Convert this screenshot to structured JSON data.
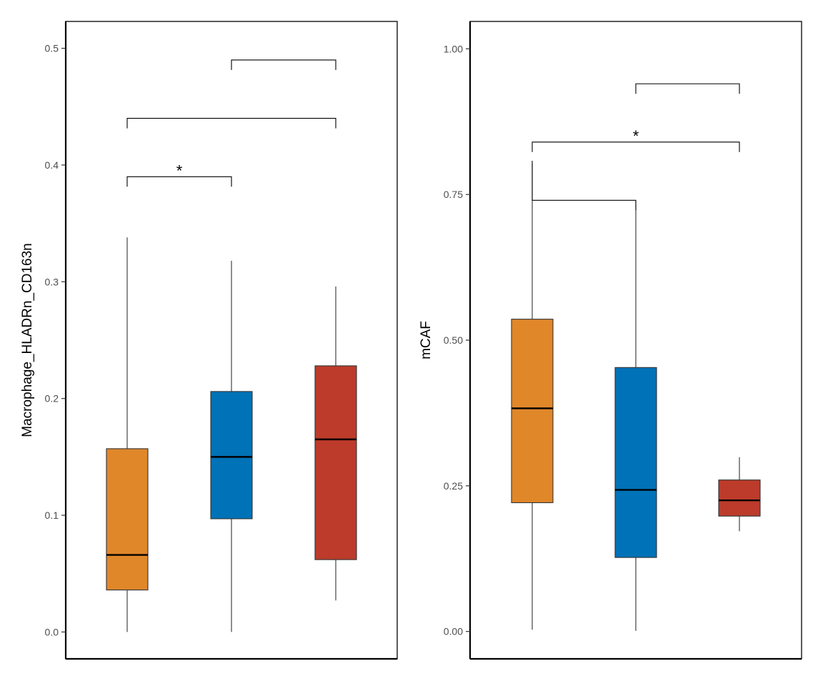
{
  "chart_data": [
    {
      "type": "box",
      "title": "",
      "xlabel": "",
      "ylabel": "Macrophage_HLADRn_CD163n",
      "ylim": [
        -0.023,
        0.523
      ],
      "yticks": [
        0.0,
        0.1,
        0.2,
        0.3,
        0.4,
        0.5
      ],
      "ytick_labels": [
        "0.0",
        "0.1",
        "0.2",
        "0.3",
        "0.4",
        "0.5"
      ],
      "grid": false,
      "legend": "none",
      "groups": [
        {
          "color": "#e0872a",
          "whisker_low": 0.0,
          "q1": 0.036,
          "median": 0.066,
          "q3": 0.157,
          "whisker_high": 0.338
        },
        {
          "color": "#0072b7",
          "whisker_low": 0.0,
          "q1": 0.097,
          "median": 0.15,
          "q3": 0.206,
          "whisker_high": 0.318
        },
        {
          "color": "#bc3b2b",
          "whisker_low": 0.027,
          "q1": 0.062,
          "median": 0.165,
          "q3": 0.228,
          "whisker_high": 0.296
        }
      ],
      "comparisons": [
        {
          "from": 1,
          "to": 2,
          "y": 0.39,
          "label": "*"
        },
        {
          "from": 1,
          "to": 3,
          "y": 0.44,
          "label": ""
        },
        {
          "from": 2,
          "to": 3,
          "y": 0.49,
          "label": ""
        }
      ]
    },
    {
      "type": "box",
      "title": "",
      "xlabel": "",
      "ylabel": "mCAF",
      "ylim": [
        -0.047,
        1.047
      ],
      "yticks": [
        0.0,
        0.25,
        0.5,
        0.75,
        1.0
      ],
      "ytick_labels": [
        "0.00",
        "0.25",
        "0.50",
        "0.75",
        "1.00"
      ],
      "grid": false,
      "legend": "none",
      "groups": [
        {
          "color": "#e0872a",
          "whisker_low": 0.003,
          "q1": 0.221,
          "median": 0.383,
          "q3": 0.536,
          "whisker_high": 0.803
        },
        {
          "color": "#0072b7",
          "whisker_low": 0.001,
          "q1": 0.127,
          "median": 0.243,
          "q3": 0.453,
          "whisker_high": 0.739
        },
        {
          "color": "#bc3b2b",
          "whisker_low": 0.172,
          "q1": 0.198,
          "median": 0.225,
          "q3": 0.26,
          "whisker_high": 0.299
        }
      ],
      "comparisons": [
        {
          "from": 1,
          "to": 2,
          "y": 0.74,
          "label": ""
        },
        {
          "from": 1,
          "to": 3,
          "y": 0.84,
          "label": "*"
        },
        {
          "from": 2,
          "to": 3,
          "y": 0.94,
          "label": ""
        }
      ]
    }
  ]
}
